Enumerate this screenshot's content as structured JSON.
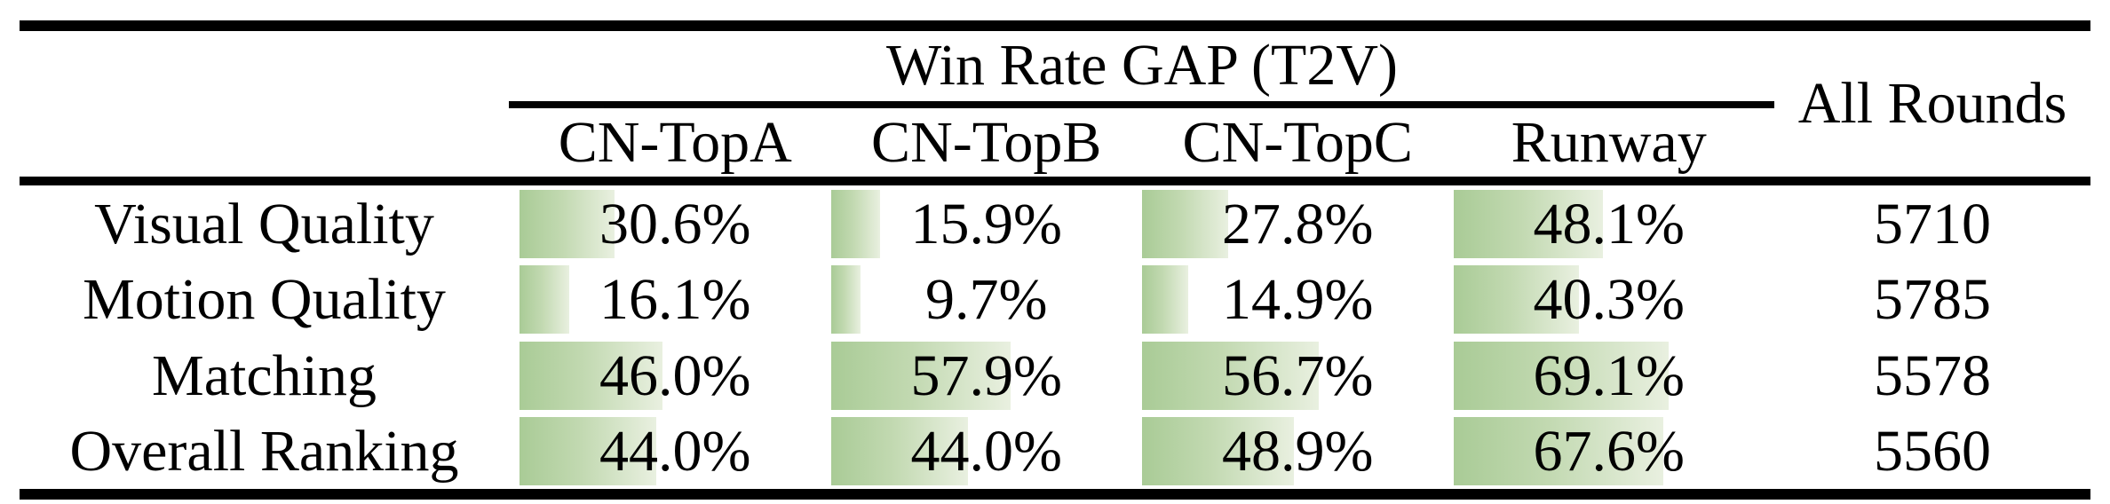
{
  "table": {
    "group_header": "Win Rate GAP (T2V)",
    "all_rounds_header": "All Rounds",
    "columns": [
      "CN-TopA",
      "CN-TopB",
      "CN-TopC",
      "Runway"
    ],
    "rows": [
      {
        "label": "Visual Quality",
        "cells": [
          {
            "text": "30.6%",
            "pct": 30.6
          },
          {
            "text": "15.9%",
            "pct": 15.9
          },
          {
            "text": "27.8%",
            "pct": 27.8
          },
          {
            "text": "48.1%",
            "pct": 48.1
          }
        ],
        "rounds": "5710"
      },
      {
        "label": "Motion Quality",
        "cells": [
          {
            "text": "16.1%",
            "pct": 16.1
          },
          {
            "text": "9.7%",
            "pct": 9.7
          },
          {
            "text": "14.9%",
            "pct": 14.9
          },
          {
            "text": "40.3%",
            "pct": 40.3
          }
        ],
        "rounds": "5785"
      },
      {
        "label": "Matching",
        "cells": [
          {
            "text": "46.0%",
            "pct": 46.0
          },
          {
            "text": "57.9%",
            "pct": 57.9
          },
          {
            "text": "56.7%",
            "pct": 56.7
          },
          {
            "text": "69.1%",
            "pct": 69.1
          }
        ],
        "rounds": "5578"
      },
      {
        "label": "Overall Ranking",
        "cells": [
          {
            "text": "44.0%",
            "pct": 44.0
          },
          {
            "text": "44.0%",
            "pct": 44.0
          },
          {
            "text": "48.9%",
            "pct": 48.9
          },
          {
            "text": "67.6%",
            "pct": 67.6
          }
        ],
        "rounds": "5560"
      }
    ]
  },
  "chart_data": {
    "type": "table",
    "title": "Win Rate GAP (T2V)",
    "categories": [
      "Visual Quality",
      "Motion Quality",
      "Matching",
      "Overall Ranking"
    ],
    "series": [
      {
        "name": "CN-TopA",
        "values": [
          30.6,
          16.1,
          46.0,
          44.0
        ]
      },
      {
        "name": "CN-TopB",
        "values": [
          15.9,
          9.7,
          57.9,
          44.0
        ]
      },
      {
        "name": "CN-TopC",
        "values": [
          27.8,
          14.9,
          56.7,
          48.9
        ]
      },
      {
        "name": "Runway",
        "values": [
          48.1,
          40.3,
          69.1,
          67.6
        ]
      }
    ],
    "extra_column": {
      "name": "All Rounds",
      "values": [
        5710,
        5785,
        5578,
        5560
      ]
    },
    "value_unit": "%",
    "bar_style": "in-cell data bar, width proportional to percent of cell width, green gradient fading right"
  },
  "colors": {
    "bar_start": "#a9cb96",
    "bar_mid": "#c2d9b1",
    "bar_end": "#e9f0e0",
    "rule": "#000000",
    "bg": "#ffffff",
    "fg": "#000000"
  }
}
